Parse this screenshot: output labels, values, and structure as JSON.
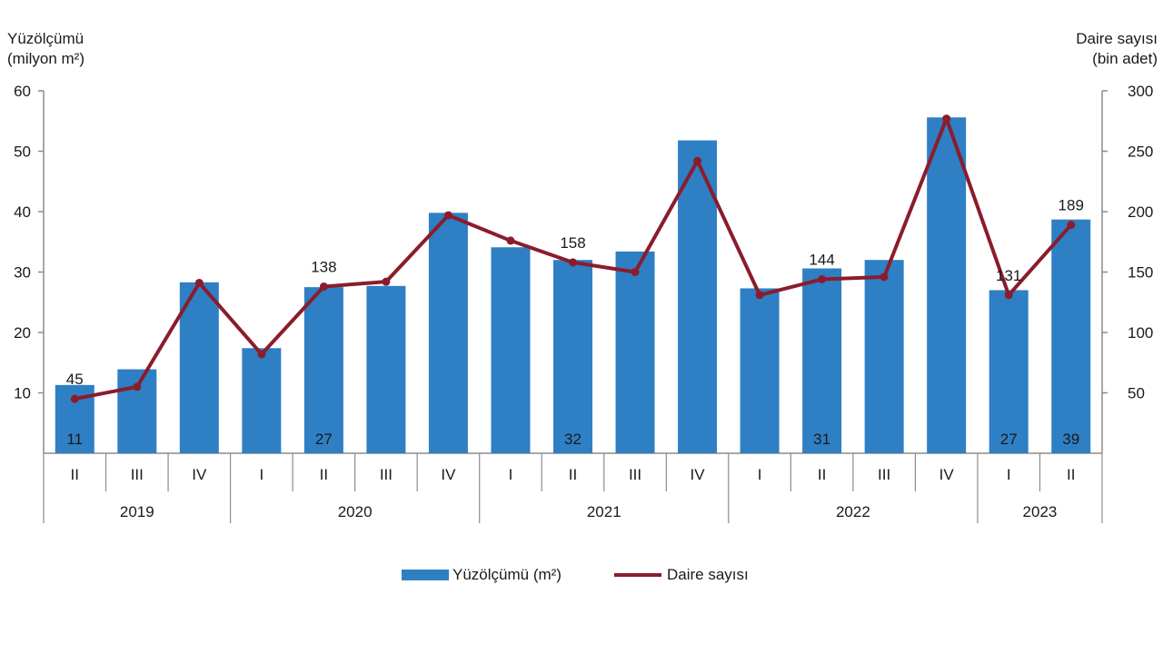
{
  "axis_titles": {
    "left_line1": "Yüzölçümü",
    "left_line2": "milyon m²)",
    "right_line1": "Daire sayısı",
    "right_line2": "(bin adet)"
  },
  "legend": {
    "bar_label": "Yüzölçümü (m²)",
    "line_label": "Daire sayısı"
  },
  "colors": {
    "bar": "#2f7fc4",
    "line": "#8b1c2c",
    "axis": "#8c8c8c"
  },
  "chart_data": {
    "type": "bar",
    "categories": [
      "II",
      "III",
      "IV",
      "I",
      "II",
      "III",
      "IV",
      "I",
      "II",
      "III",
      "IV",
      "I",
      "II",
      "III",
      "IV",
      "I",
      "II"
    ],
    "year_groups": [
      {
        "label": "2019",
        "count": 3
      },
      {
        "label": "2020",
        "count": 4
      },
      {
        "label": "2021",
        "count": 4
      },
      {
        "label": "2022",
        "count": 4
      },
      {
        "label": "2023",
        "count": 2
      }
    ],
    "series": [
      {
        "name": "Yüzölçümü (m²)",
        "type": "bar",
        "axis": "left",
        "values": [
          11.3,
          13.9,
          28.3,
          17.4,
          27.5,
          27.7,
          39.8,
          34.1,
          32.0,
          33.4,
          51.8,
          27.3,
          30.6,
          32.0,
          55.6,
          27.0,
          38.7
        ]
      },
      {
        "name": "Daire sayısı",
        "type": "line",
        "axis": "right",
        "values": [
          45,
          55,
          141,
          82,
          138,
          142,
          197,
          176,
          158,
          150,
          242,
          131,
          144,
          146,
          277,
          131,
          189
        ]
      }
    ],
    "bar_value_labels": [
      "11",
      "",
      "",
      "",
      "27",
      "",
      "",
      "",
      "32",
      "",
      "",
      "",
      "31",
      "",
      "",
      "27",
      "39"
    ],
    "line_value_labels": [
      "45",
      "",
      "",
      "",
      "138",
      "",
      "",
      "",
      "158",
      "",
      "",
      "",
      "144",
      "",
      "",
      "131",
      "189"
    ],
    "y_left": {
      "ylim": [
        0,
        60
      ],
      "ticks": [
        "10",
        "20",
        "30",
        "40",
        "50",
        "60"
      ]
    },
    "y_right": {
      "ylim": [
        0,
        300
      ],
      "ticks": [
        "50",
        "100",
        "150",
        "200",
        "250",
        "300"
      ]
    },
    "grid": false,
    "legend_position": "bottom-center"
  }
}
